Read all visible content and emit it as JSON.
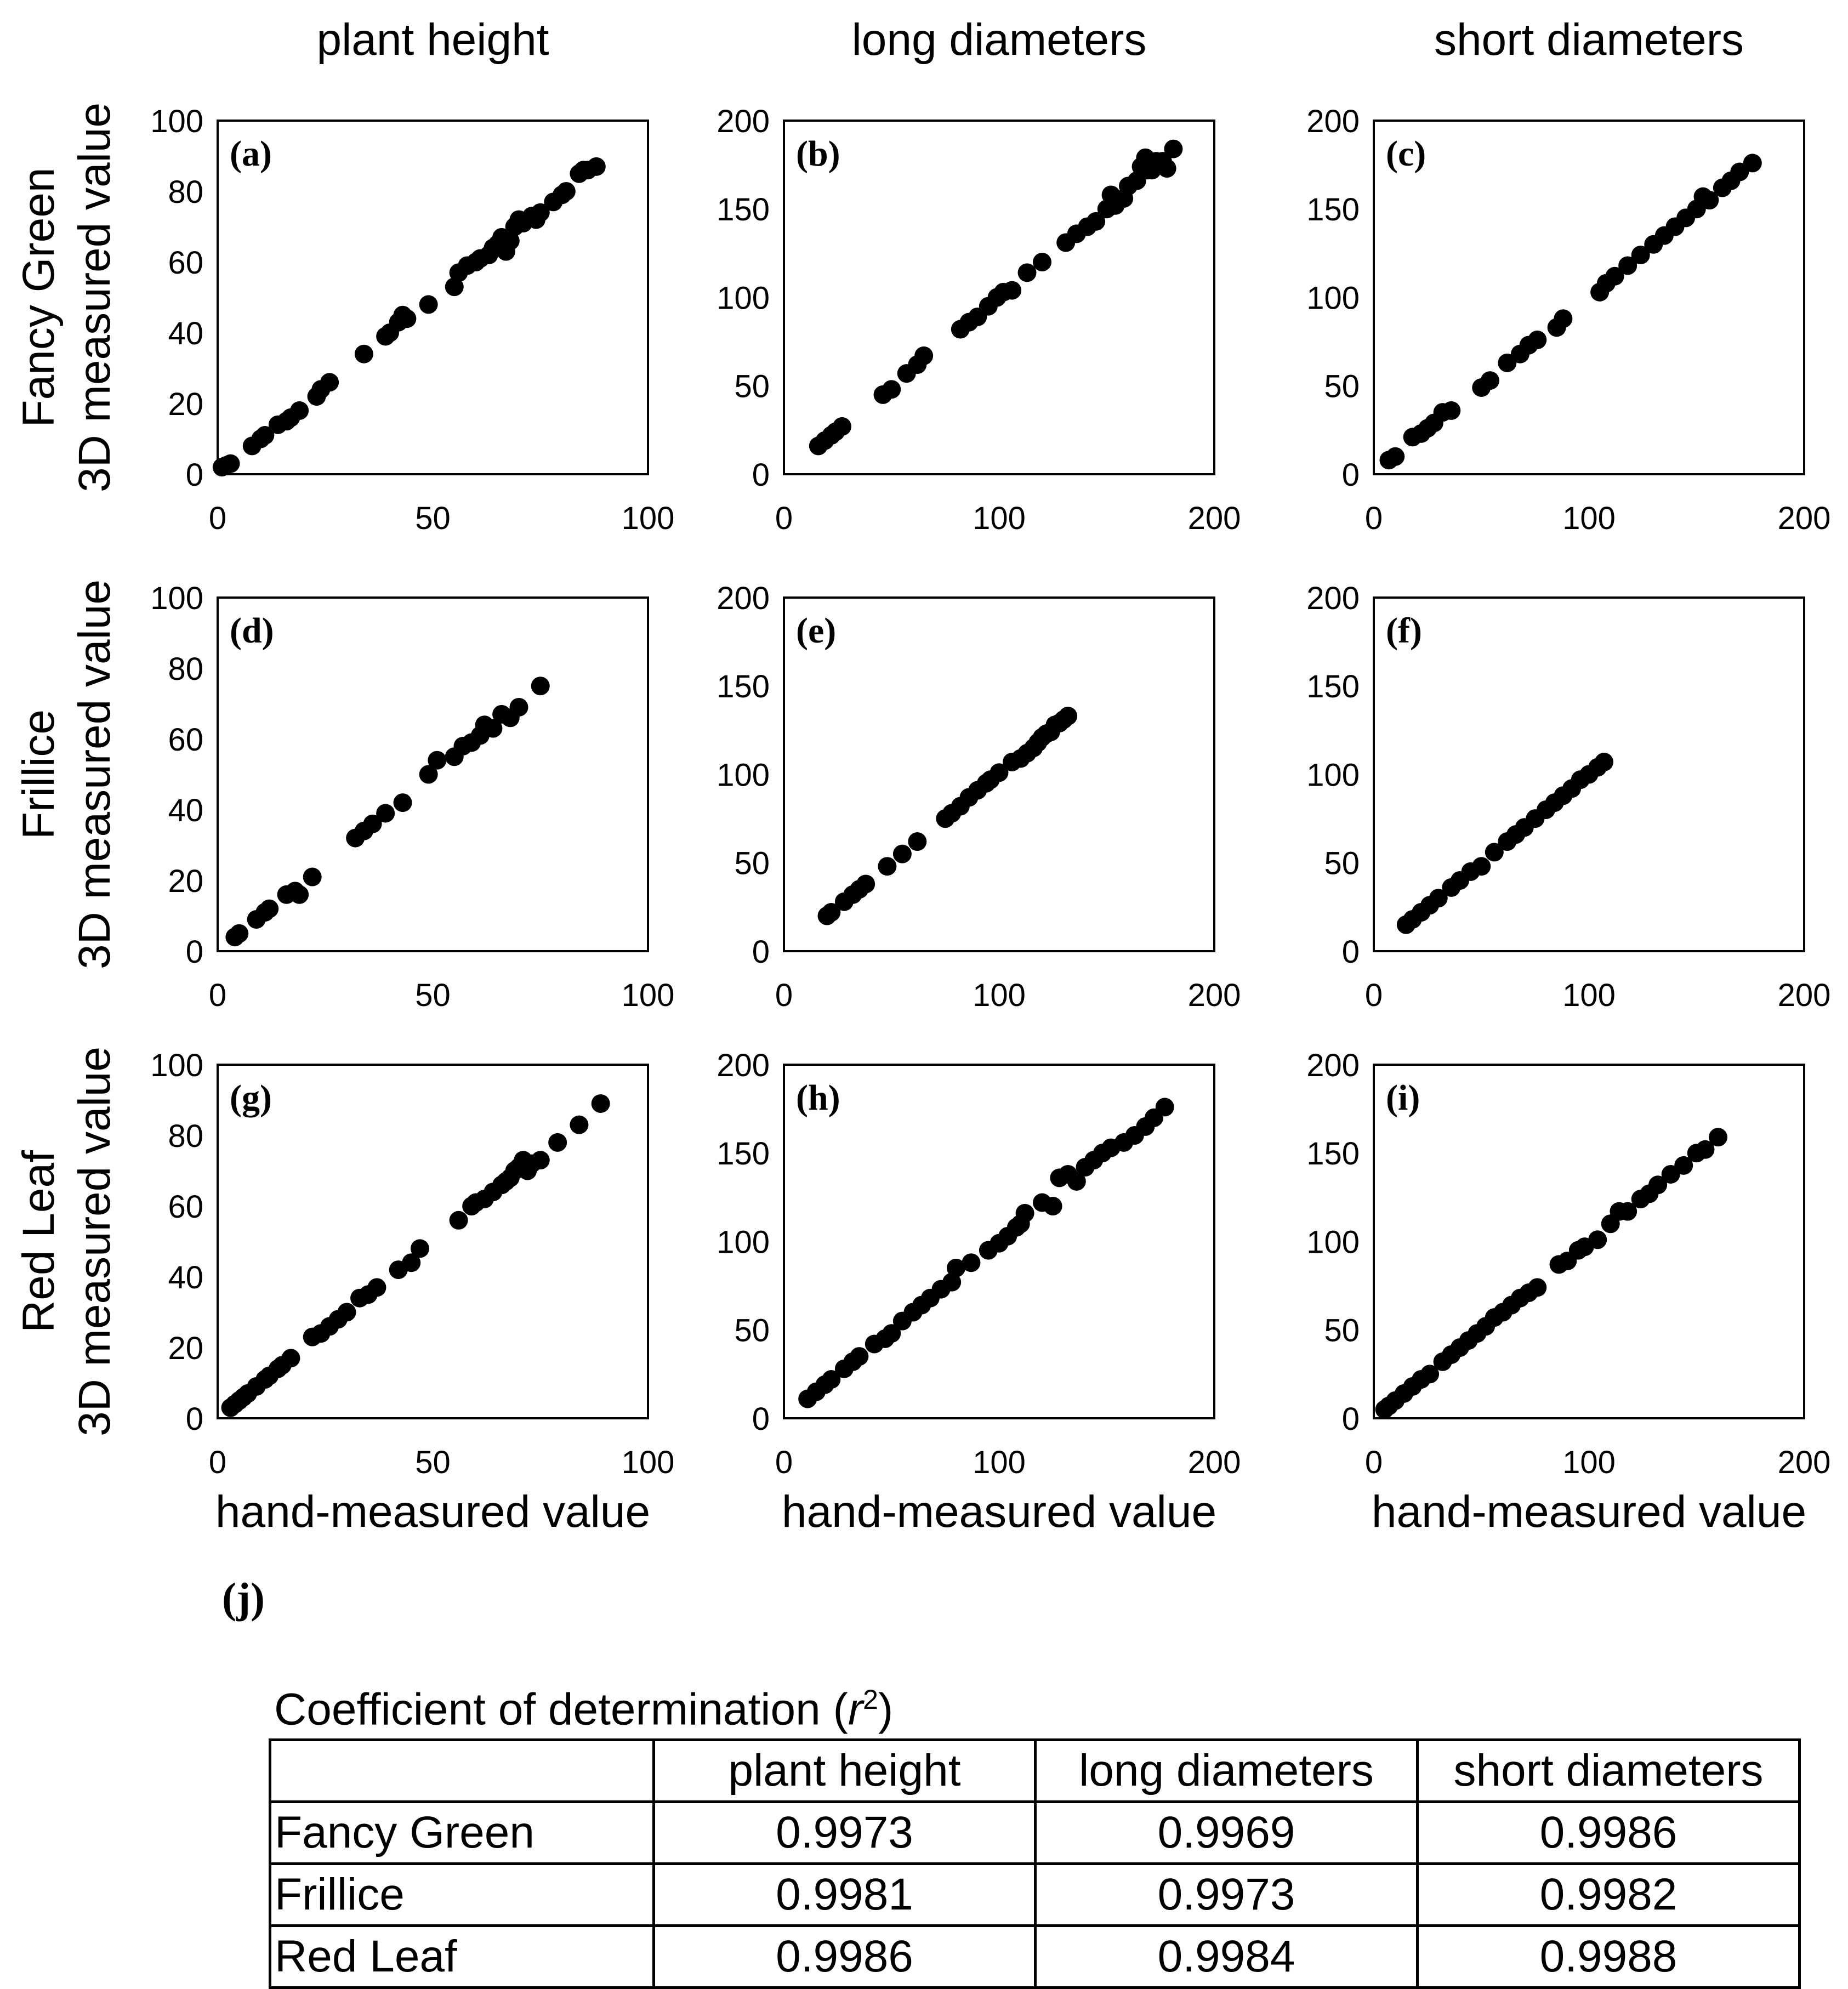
{
  "column_titles": [
    "plant height",
    "long diameters",
    "short diameters"
  ],
  "row_titles": [
    "Fancy Green",
    "Frillice",
    "Red Leaf"
  ],
  "ylabel": "3D measured value",
  "xlabel": "hand-measured value",
  "chart_data": [
    {
      "panel": "(a)",
      "type": "scatter",
      "xlim": [
        0,
        100
      ],
      "ylim": [
        0,
        100
      ],
      "xticks": [
        "0",
        "50",
        "100"
      ],
      "yticks": [
        "0",
        "20",
        "40",
        "60",
        "80",
        "100"
      ],
      "x": [
        1,
        2,
        3,
        8,
        10,
        11,
        14,
        16,
        17,
        19,
        23,
        24,
        26,
        34,
        39,
        40,
        42,
        43,
        44,
        49,
        55,
        56,
        58,
        60,
        61,
        63,
        64,
        65,
        66,
        67,
        68,
        69,
        70,
        71,
        73,
        74,
        75,
        78,
        80,
        81,
        84,
        85,
        86,
        88
      ],
      "y": [
        2,
        2.5,
        3,
        8,
        10,
        11,
        14,
        15,
        16,
        18,
        22,
        24,
        26,
        34,
        39,
        40,
        43,
        45,
        44,
        48,
        53,
        57,
        59,
        60,
        61,
        62,
        64,
        65,
        67,
        63,
        66,
        70,
        72,
        71,
        73,
        72,
        74,
        77,
        79,
        80,
        85,
        86,
        86,
        87
      ]
    },
    {
      "panel": "(b)",
      "type": "scatter",
      "xlim": [
        0,
        200
      ],
      "ylim": [
        0,
        200
      ],
      "xticks": [
        "0",
        "100",
        "200"
      ],
      "yticks": [
        "0",
        "50",
        "100",
        "150",
        "200"
      ],
      "x": [
        16,
        19,
        22,
        24,
        27,
        46,
        50,
        57,
        62,
        65,
        82,
        86,
        90,
        95,
        99,
        102,
        106,
        113,
        120,
        131,
        136,
        141,
        145,
        150,
        152,
        154,
        158,
        160,
        164,
        166,
        168,
        169,
        171,
        173,
        176,
        178,
        181
      ],
      "y": [
        16,
        19,
        22,
        24,
        27,
        45,
        48,
        57,
        62,
        67,
        82,
        86,
        89,
        95,
        100,
        103,
        104,
        114,
        120,
        131,
        136,
        140,
        143,
        150,
        158,
        152,
        156,
        163,
        166,
        174,
        179,
        172,
        172,
        177,
        177,
        173,
        184
      ]
    },
    {
      "panel": "(c)",
      "type": "scatter",
      "xlim": [
        0,
        200
      ],
      "ylim": [
        0,
        200
      ],
      "xticks": [
        "0",
        "100",
        "200"
      ],
      "yticks": [
        "0",
        "50",
        "100",
        "150",
        "200"
      ],
      "x": [
        7,
        10,
        18,
        22,
        25,
        28,
        32,
        36,
        50,
        54,
        62,
        68,
        72,
        76,
        85,
        88,
        105,
        108,
        112,
        118,
        124,
        130,
        135,
        140,
        145,
        150,
        153,
        156,
        162,
        166,
        170,
        176
      ],
      "y": [
        8,
        10,
        21,
        23,
        26,
        29,
        35,
        36,
        49,
        53,
        63,
        68,
        73,
        76,
        83,
        88,
        103,
        108,
        112,
        118,
        124,
        130,
        135,
        140,
        145,
        150,
        157,
        155,
        162,
        166,
        171,
        176
      ]
    },
    {
      "panel": "(d)",
      "type": "scatter",
      "xlim": [
        0,
        100
      ],
      "ylim": [
        0,
        100
      ],
      "xticks": [
        "0",
        "50",
        "100"
      ],
      "yticks": [
        "0",
        "20",
        "40",
        "60",
        "80",
        "100"
      ],
      "x": [
        4,
        5,
        9,
        11,
        12,
        16,
        18,
        19,
        22,
        32,
        34,
        36,
        39,
        43,
        49,
        51,
        55,
        57,
        59,
        61,
        62,
        64,
        66,
        68,
        70,
        75
      ],
      "y": [
        4,
        5,
        9,
        11,
        12,
        16,
        17,
        16,
        21,
        32,
        34,
        36,
        39,
        42,
        50,
        54,
        55,
        58,
        59,
        61,
        64,
        63,
        67,
        66,
        69,
        75
      ]
    },
    {
      "panel": "(e)",
      "type": "scatter",
      "xlim": [
        0,
        200
      ],
      "ylim": [
        0,
        200
      ],
      "xticks": [
        "0",
        "100",
        "200"
      ],
      "yticks": [
        "0",
        "50",
        "100",
        "150",
        "200"
      ],
      "x": [
        20,
        22,
        28,
        32,
        35,
        38,
        48,
        55,
        62,
        75,
        78,
        82,
        86,
        90,
        94,
        96,
        100,
        106,
        110,
        113,
        116,
        118,
        120,
        122,
        124,
        126,
        128,
        130,
        132
      ],
      "y": [
        20,
        22,
        28,
        32,
        35,
        38,
        48,
        55,
        62,
        75,
        78,
        82,
        87,
        91,
        95,
        97,
        101,
        107,
        109,
        112,
        115,
        118,
        121,
        123,
        124,
        128,
        129,
        131,
        133
      ]
    },
    {
      "panel": "(f)",
      "type": "scatter",
      "xlim": [
        0,
        200
      ],
      "ylim": [
        0,
        200
      ],
      "xticks": [
        "0",
        "100",
        "200"
      ],
      "yticks": [
        "0",
        "50",
        "100",
        "150",
        "200"
      ],
      "x": [
        15,
        18,
        22,
        26,
        30,
        36,
        40,
        45,
        50,
        56,
        62,
        66,
        70,
        75,
        80,
        84,
        88,
        92,
        96,
        100,
        104,
        107
      ],
      "y": [
        15,
        18,
        22,
        26,
        30,
        36,
        40,
        45,
        48,
        56,
        62,
        66,
        70,
        75,
        80,
        84,
        88,
        92,
        97,
        100,
        104,
        107
      ]
    },
    {
      "panel": "(g)",
      "type": "scatter",
      "xlim": [
        0,
        100
      ],
      "ylim": [
        0,
        100
      ],
      "xticks": [
        "0",
        "50",
        "100"
      ],
      "yticks": [
        "0",
        "20",
        "40",
        "60",
        "80",
        "100"
      ],
      "x": [
        3,
        4,
        5,
        6,
        7,
        9,
        11,
        12,
        14,
        15,
        17,
        22,
        24,
        26,
        28,
        30,
        33,
        35,
        37,
        42,
        45,
        47,
        56,
        59,
        60,
        62,
        64,
        66,
        67,
        68,
        69,
        70,
        71,
        72,
        73,
        75,
        79,
        84,
        89
      ],
      "y": [
        3,
        4,
        5,
        6,
        7,
        9,
        11,
        12,
        14,
        15,
        17,
        23,
        24,
        26,
        28,
        30,
        34,
        35,
        37,
        42,
        44,
        48,
        56,
        60,
        61,
        62,
        64,
        66,
        67,
        68,
        70,
        71,
        73,
        70,
        72,
        73,
        78,
        83,
        89
      ]
    },
    {
      "panel": "(h)",
      "type": "scatter",
      "xlim": [
        0,
        200
      ],
      "ylim": [
        0,
        200
      ],
      "xticks": [
        "0",
        "100",
        "200"
      ],
      "yticks": [
        "0",
        "50",
        "100",
        "150",
        "200"
      ],
      "x": [
        11,
        15,
        19,
        22,
        28,
        32,
        35,
        42,
        47,
        50,
        55,
        60,
        64,
        68,
        73,
        78,
        80,
        87,
        95,
        100,
        104,
        108,
        110,
        112,
        120,
        125,
        128,
        132,
        136,
        140,
        144,
        148,
        152,
        158,
        163,
        168,
        172,
        177
      ],
      "y": [
        11,
        15,
        19,
        22,
        28,
        32,
        35,
        42,
        45,
        48,
        55,
        60,
        64,
        68,
        73,
        77,
        85,
        88,
        95,
        99,
        103,
        108,
        110,
        116,
        122,
        120,
        136,
        138,
        134,
        142,
        146,
        150,
        153,
        156,
        160,
        165,
        170,
        176
      ]
    },
    {
      "panel": "(i)",
      "type": "scatter",
      "xlim": [
        0,
        200
      ],
      "ylim": [
        0,
        200
      ],
      "xticks": [
        "0",
        "100",
        "200"
      ],
      "yticks": [
        "0",
        "50",
        "100",
        "150",
        "200"
      ],
      "x": [
        5,
        7,
        10,
        14,
        18,
        22,
        26,
        32,
        36,
        40,
        44,
        48,
        52,
        56,
        60,
        64,
        68,
        72,
        76,
        86,
        90,
        95,
        98,
        104,
        110,
        114,
        118,
        124,
        128,
        132,
        138,
        144,
        150,
        154,
        160
      ],
      "y": [
        5,
        7,
        10,
        14,
        18,
        22,
        25,
        32,
        36,
        40,
        44,
        48,
        52,
        57,
        60,
        64,
        68,
        71,
        74,
        87,
        89,
        95,
        97,
        101,
        110,
        117,
        117,
        124,
        127,
        132,
        138,
        143,
        150,
        152,
        159
      ]
    }
  ],
  "table": {
    "label": "(j)",
    "title_prefix": "Coefficient of determination (",
    "title_symbol": "r",
    "title_sup": "2",
    "title_suffix": ")",
    "headers": [
      "",
      "plant height",
      "long diameters",
      "short diameters"
    ],
    "rows": [
      {
        "label": "Fancy Green",
        "values": [
          "0.9973",
          "0.9969",
          "0.9986"
        ]
      },
      {
        "label": "Frillice",
        "values": [
          "0.9981",
          "0.9973",
          "0.9982"
        ]
      },
      {
        "label": "Red Leaf",
        "values": [
          "0.9986",
          "0.9984",
          "0.9988"
        ]
      }
    ]
  }
}
